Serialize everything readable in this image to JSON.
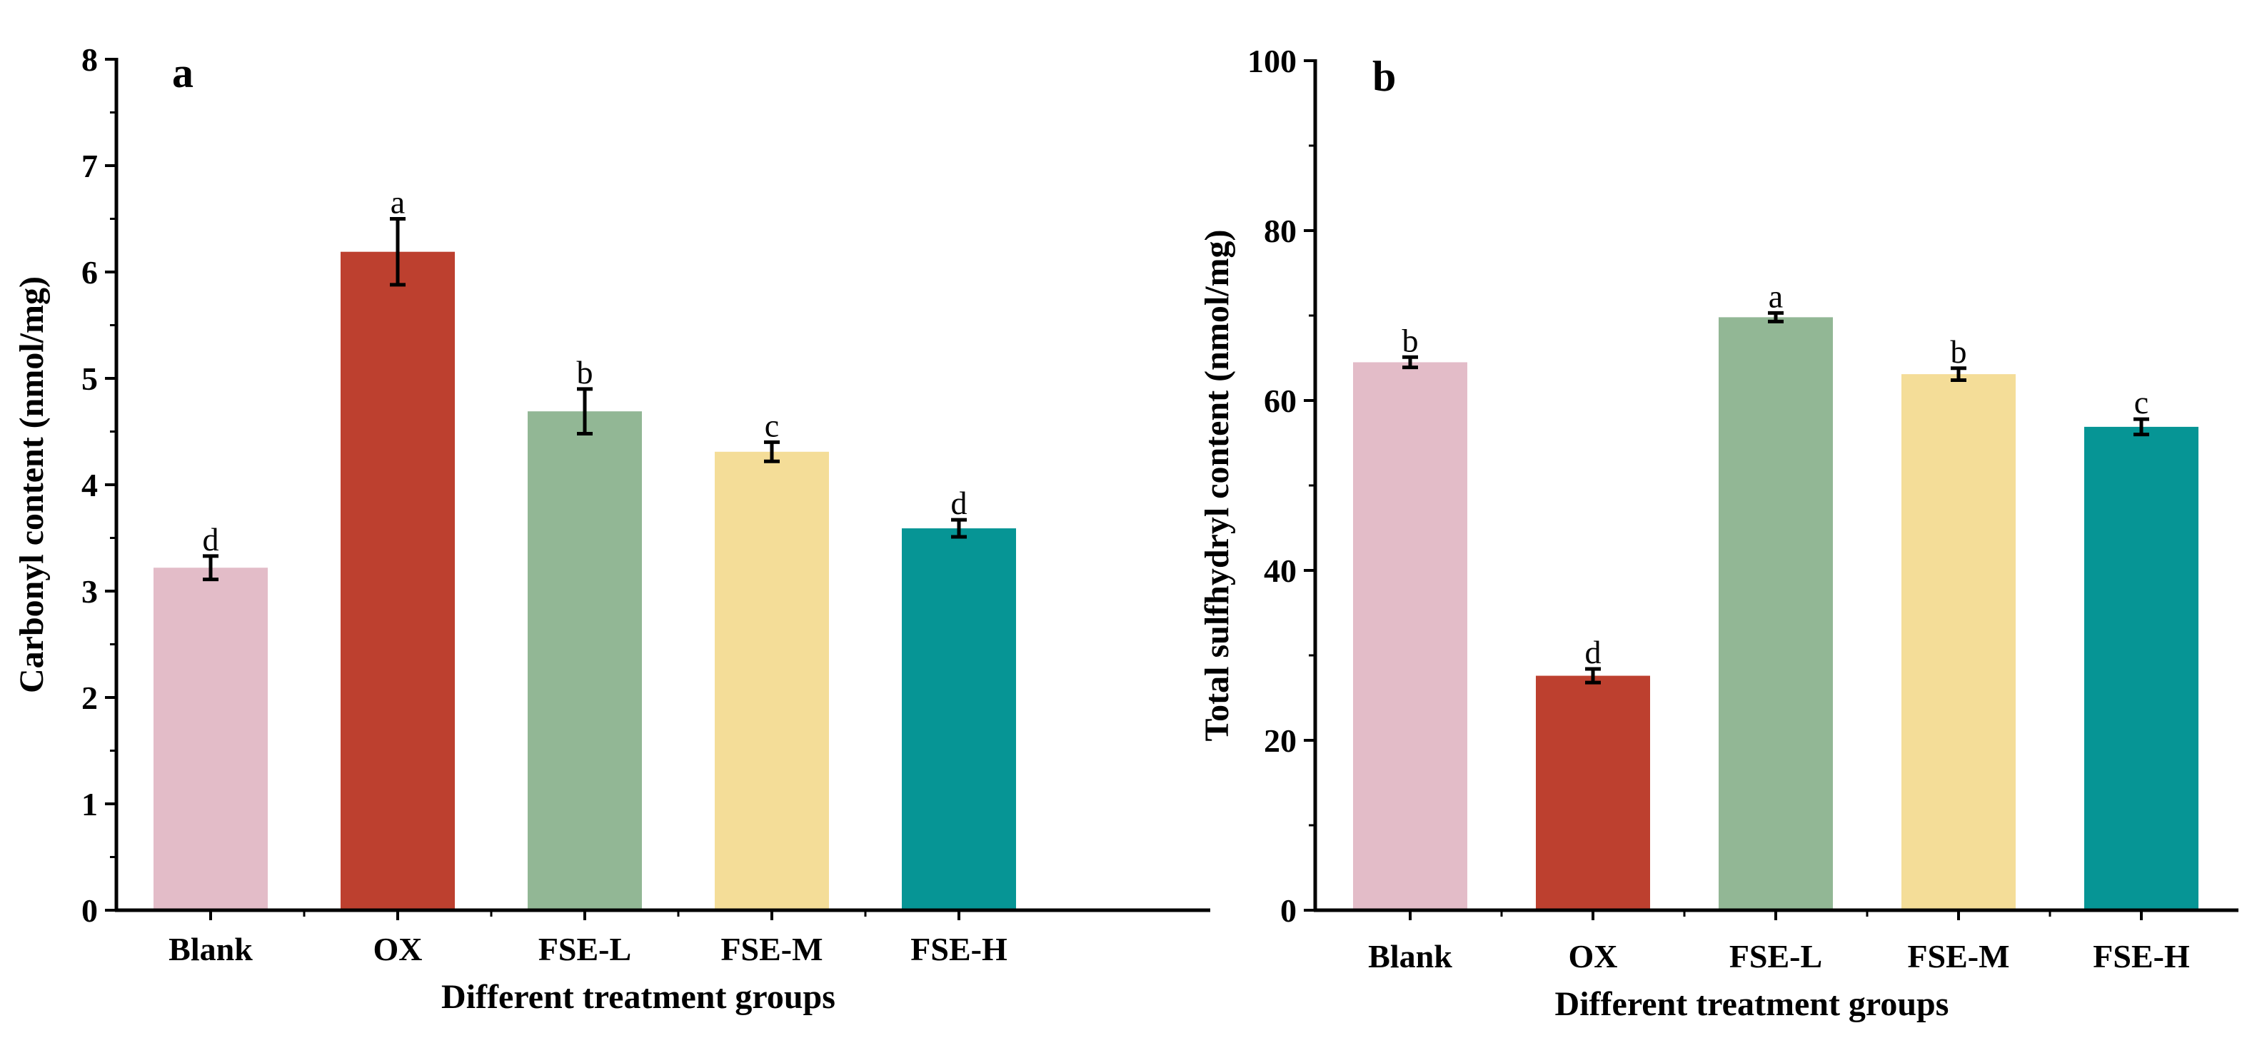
{
  "chart_data": [
    {
      "type": "bar",
      "panel_label": "a",
      "categories": [
        "Blank",
        "OX",
        "FSE-L",
        "FSE-M",
        "FSE-H"
      ],
      "values": [
        3.22,
        6.19,
        4.69,
        4.31,
        3.59
      ],
      "errors": [
        0.11,
        0.31,
        0.21,
        0.09,
        0.08
      ],
      "significance": [
        "d",
        "a",
        "b",
        "c",
        "d"
      ],
      "colors": [
        "#e3bcc8",
        "#bd402f",
        "#92b795",
        "#f4dd98",
        "#069595"
      ],
      "title": "",
      "xlabel": "Different treatment groups",
      "ylabel": "Carbonyl content (nmol/mg)",
      "ylim": [
        0,
        8
      ],
      "yticks": [
        "0",
        "1",
        "2",
        "3",
        "4",
        "5",
        "6",
        "7",
        "8"
      ],
      "grid": false,
      "legend": "none"
    },
    {
      "type": "bar",
      "panel_label": "b",
      "categories": [
        "Blank",
        "OX",
        "FSE-L",
        "FSE-M",
        "FSE-H"
      ],
      "values": [
        64.5,
        27.6,
        69.8,
        63.1,
        56.9
      ],
      "errors": [
        0.6,
        0.8,
        0.5,
        0.7,
        0.9
      ],
      "significance": [
        "b",
        "d",
        "a",
        "b",
        "c"
      ],
      "colors": [
        "#e3bcc8",
        "#bd402f",
        "#92b795",
        "#f4dd98",
        "#069595"
      ],
      "title": "",
      "xlabel": "Different treatment groups",
      "ylabel": "Total sulfhydryl content (nmol/mg)",
      "ylim": [
        0,
        100
      ],
      "yticks": [
        "0",
        "20",
        "40",
        "60",
        "80",
        "100"
      ],
      "grid": false,
      "legend": "none"
    }
  ]
}
